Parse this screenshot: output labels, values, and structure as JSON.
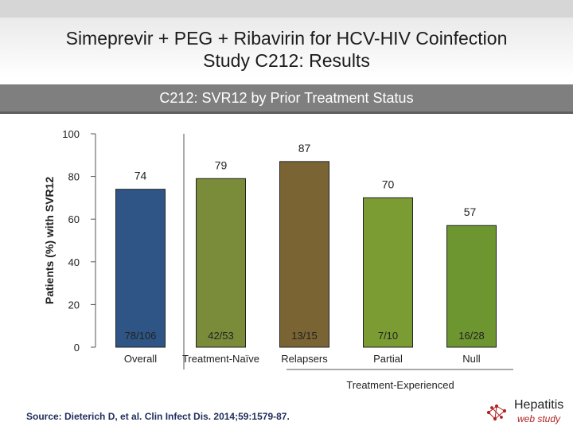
{
  "header": {
    "title_line1": "Simeprevir + PEG + Ribavirin for HCV-HIV Coinfection",
    "title_line2": "Study C212: Results"
  },
  "subtitle": "C212: SVR12 by Prior Treatment Status",
  "chart_data": {
    "type": "bar",
    "title": "C212: SVR12 by Prior Treatment Status",
    "ylabel": "Patients (%) with SVR12",
    "xlabel": "",
    "ylim": [
      0,
      100
    ],
    "yticks": [
      "100",
      "80",
      "60",
      "40",
      "20",
      "0"
    ],
    "categories": [
      "Overall",
      "Treatment-Naïve",
      "Relapsers",
      "Partial",
      "Null"
    ],
    "values": [
      74,
      79,
      87,
      70,
      57
    ],
    "value_labels": [
      "74",
      "79",
      "87",
      "70",
      "57"
    ],
    "n_labels": [
      "78/106",
      "42/53",
      "13/15",
      "7/10",
      "16/28"
    ],
    "colors": [
      "#2e5585",
      "#7a8c3a",
      "#7a6434",
      "#7a9c32",
      "#6e9630"
    ],
    "group_label": "Treatment-Experienced",
    "grid": false
  },
  "source": "Source: Dieterich D, et al. Clin Infect Dis. 2014;59:1579-87.",
  "logo": {
    "top": "Hepatitis",
    "bottom": "web study"
  }
}
